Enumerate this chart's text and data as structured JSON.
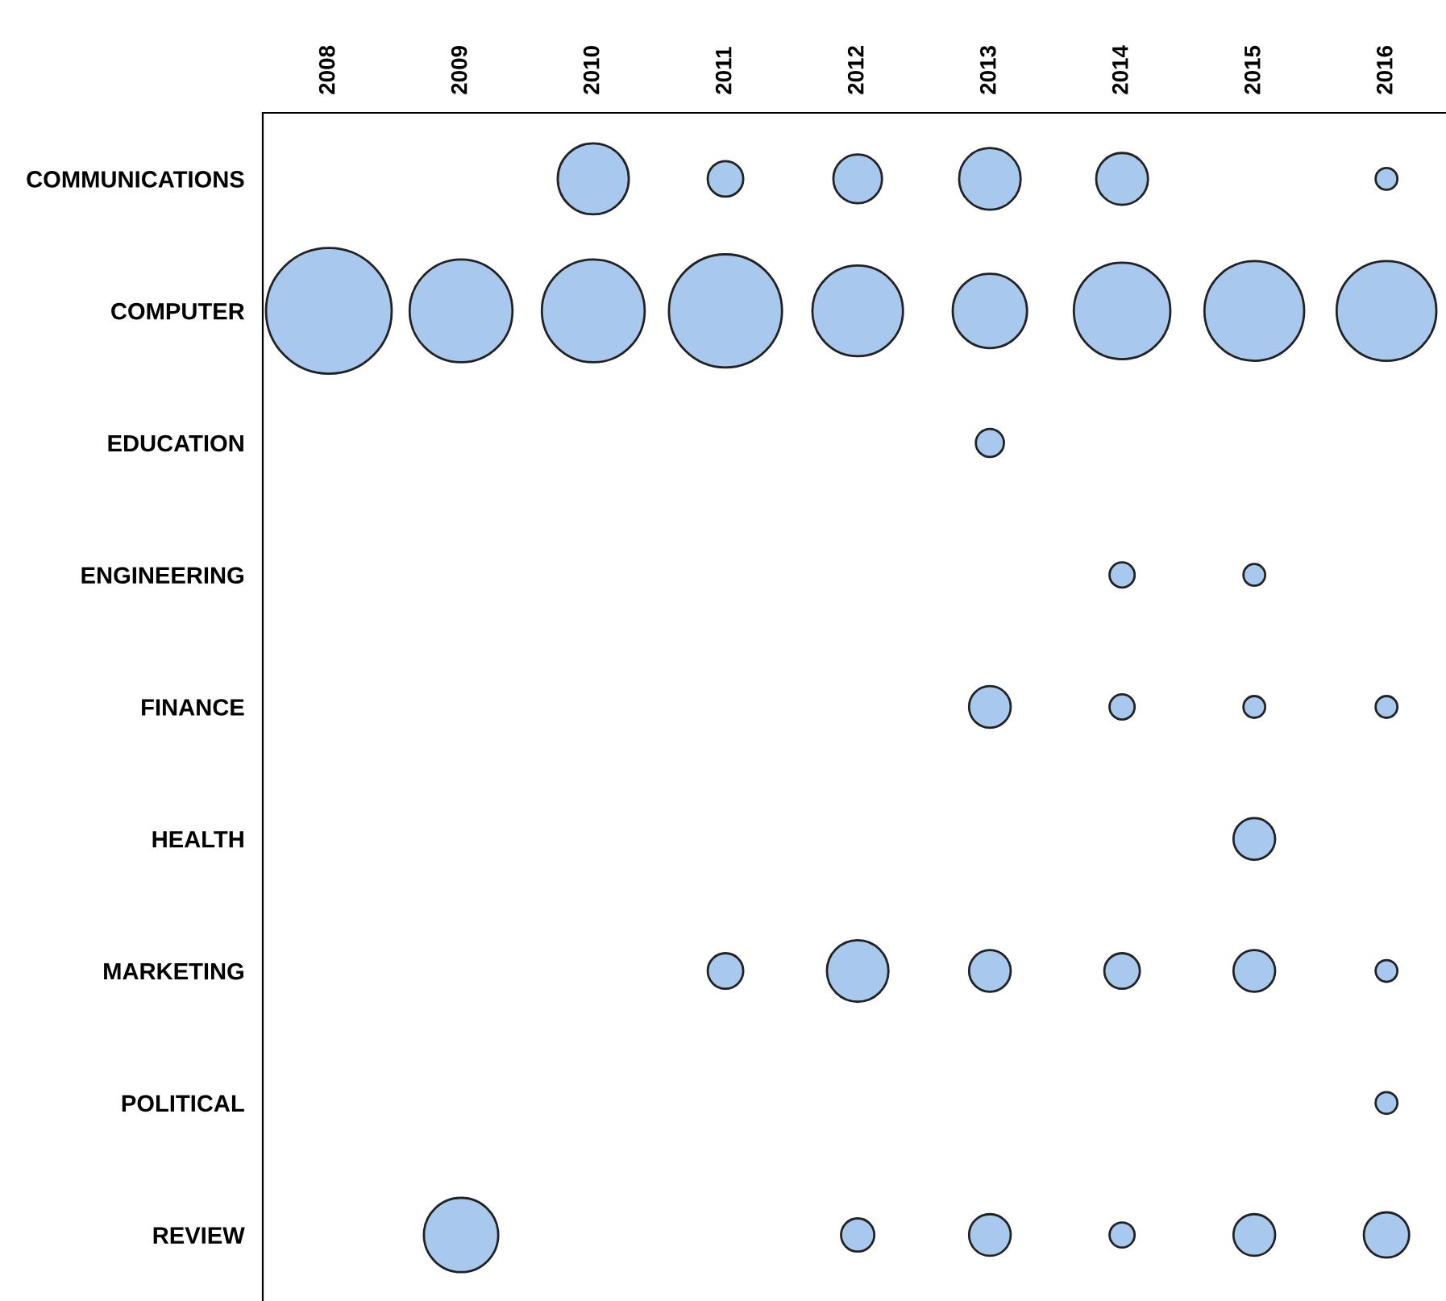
{
  "chart_data": {
    "type": "bubble",
    "orientation": "horizontal",
    "categories": [
      "COMMUNICATIONS",
      "COMPUTER",
      "EDUCATION",
      "ENGINEERING",
      "FINANCE",
      "HEALTH",
      "MARKETING",
      "POLITICAL",
      "REVIEW"
    ],
    "xlim": [
      2007.5,
      2016.45
    ],
    "xticks": [
      2008,
      2009,
      2010,
      2011,
      2012,
      2013,
      2014,
      2015,
      2016
    ],
    "series": [
      {
        "color": "#a9c8ee",
        "values": [
          null,
          2008,
          null,
          null,
          null,
          null,
          null,
          null,
          null
        ],
        "sizes": [
          null,
          1,
          null,
          null,
          null,
          null,
          null,
          null,
          null
        ]
      },
      {
        "color": "#a9c8ee",
        "values": [
          null,
          2009,
          null,
          null,
          null,
          null,
          null,
          null,
          2009
        ],
        "sizes": [
          null,
          0.67,
          null,
          null,
          null,
          null,
          null,
          null,
          0.35
        ]
      },
      {
        "color": "#a9c8ee",
        "values": [
          2010,
          2010,
          null,
          null,
          null,
          null,
          null,
          null,
          null
        ],
        "sizes": [
          0.32,
          0.67,
          null,
          null,
          null,
          null,
          null,
          null,
          null
        ]
      },
      {
        "color": "#a9c8ee",
        "values": [
          2011,
          2011,
          null,
          null,
          null,
          null,
          2011,
          null,
          null
        ],
        "sizes": [
          0.08,
          0.81,
          null,
          null,
          null,
          null,
          0.08,
          null,
          null
        ]
      },
      {
        "color": "#a9c8ee",
        "values": [
          2012,
          2012,
          null,
          null,
          null,
          null,
          2012,
          null,
          2012
        ],
        "sizes": [
          0.15,
          0.52,
          null,
          null,
          null,
          null,
          0.24,
          null,
          0.07
        ]
      },
      {
        "color": "#a9c8ee",
        "values": [
          2013,
          2013,
          2013,
          null,
          2013,
          null,
          2013,
          null,
          2013
        ],
        "sizes": [
          0.24,
          0.35,
          0.05,
          null,
          0.11,
          null,
          0.11,
          null,
          0.11
        ]
      },
      {
        "color": "#a9c8ee",
        "values": [
          2014,
          2014,
          null,
          2014,
          2014,
          null,
          2014,
          null,
          2014
        ],
        "sizes": [
          0.17,
          0.59,
          null,
          0.04,
          0.04,
          null,
          0.08,
          null,
          0.04
        ]
      },
      {
        "color": "#a9c8ee",
        "values": [
          null,
          2015,
          null,
          2015,
          2015,
          2015,
          2015,
          null,
          2015
        ],
        "sizes": [
          null,
          0.63,
          null,
          0.03,
          0.03,
          0.11,
          0.11,
          null,
          0.11
        ]
      },
      {
        "color": "#a9c8ee",
        "values": [
          2016,
          2016,
          null,
          null,
          2016,
          null,
          2016,
          2016,
          2016
        ],
        "sizes": [
          0.03,
          0.63,
          null,
          null,
          0.03,
          null,
          0.03,
          0.03,
          0.13
        ]
      }
    ]
  }
}
